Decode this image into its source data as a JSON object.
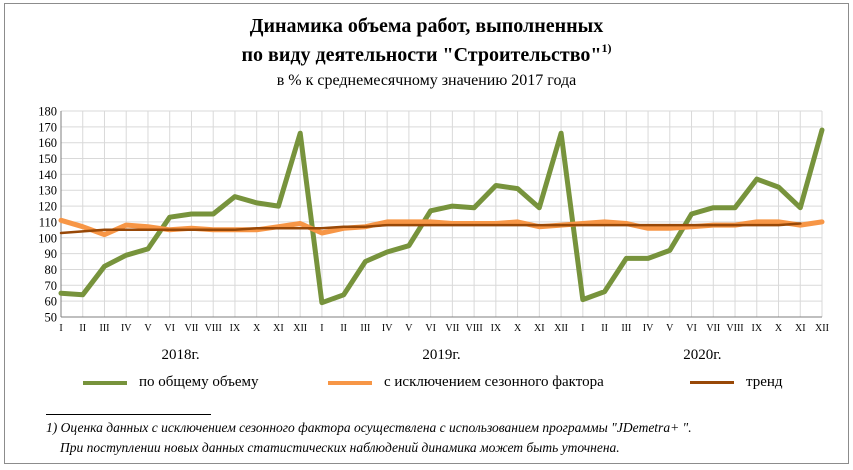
{
  "title_line1": "Динамика объема работ, выполненных",
  "title_line2": "по виду деятельности \"Строительство\"",
  "title_sup": "1)",
  "subtitle": "в % к среднемесячному значению 2017 года",
  "legend": [
    {
      "label": "по общему объему",
      "color": "#77933c"
    },
    {
      "label": "с исключением  сезонного фактора",
      "color": "#f79646"
    },
    {
      "label": "тренд",
      "color": "#984807"
    }
  ],
  "footnote_line1": "1) Оценка данных с исключением сезонного фактора осуществлена с использованием программы \"JDemetra+ \".",
  "footnote_line2": "При поступлении новых данных статистических наблюдений динамика может быть уточнена.",
  "chart_data": {
    "type": "line",
    "ylim": [
      50,
      180
    ],
    "yticks": [
      50,
      60,
      70,
      80,
      90,
      100,
      110,
      120,
      130,
      140,
      150,
      160,
      170,
      180
    ],
    "month_labels": [
      "I",
      "II",
      "III",
      "IV",
      "V",
      "VI",
      "VII",
      "VIII",
      "IX",
      "X",
      "XI",
      "XII"
    ],
    "years": [
      "2018г.",
      "2019г.",
      "2020г."
    ],
    "grid": true,
    "series": [
      {
        "name": "по общему объему",
        "color": "#77933c",
        "width": 5,
        "values": [
          65,
          64,
          82,
          89,
          93,
          113,
          115,
          115,
          126,
          122,
          120,
          166,
          59,
          64,
          85,
          91,
          95,
          117,
          120,
          119,
          133,
          131,
          119,
          166,
          61,
          66,
          87,
          87,
          92,
          115,
          119,
          119,
          137,
          132,
          119,
          168
        ]
      },
      {
        "name": "с исключением  сезонного фактора",
        "color": "#f79646",
        "width": 5,
        "values": [
          111,
          107,
          102,
          108,
          107,
          105,
          106,
          105,
          105,
          105,
          107,
          109,
          103,
          106,
          107,
          110,
          110,
          110,
          109,
          109,
          109,
          110,
          107,
          108,
          109,
          110,
          109,
          106,
          106,
          107,
          108,
          108,
          110,
          110,
          108,
          110
        ]
      },
      {
        "name": "тренд",
        "color": "#984807",
        "width": 2.5,
        "values": [
          103,
          104,
          105,
          105,
          105,
          105,
          105,
          105,
          105,
          106,
          106,
          106,
          106,
          107,
          107,
          108,
          108,
          108,
          108,
          108,
          108,
          108,
          108,
          108,
          108,
          108,
          108,
          108,
          108,
          108,
          108,
          108,
          108,
          108,
          109,
          null
        ]
      }
    ]
  }
}
